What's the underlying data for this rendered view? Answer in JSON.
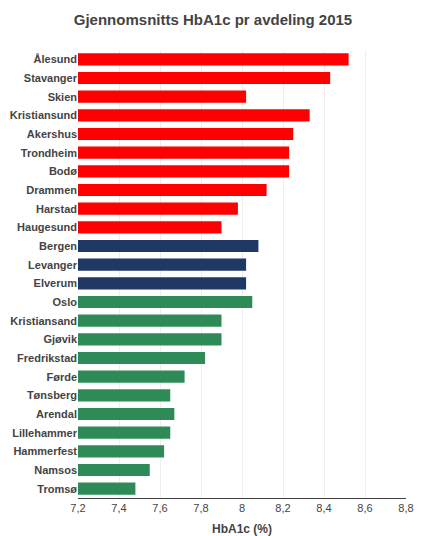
{
  "chart_data": {
    "type": "bar",
    "orientation": "horizontal",
    "title": "Gjennomsnitts HbA1c pr avdeling 2015",
    "xlabel": "HbA1c (%)",
    "categories": [
      "Ålesund",
      "Stavanger",
      "Skien",
      "Kristiansund",
      "Akershus",
      "Trondheim",
      "Bodø",
      "Drammen",
      "Harstad",
      "Haugesund",
      "Bergen",
      "Levanger",
      "Elverum",
      "Oslo",
      "Kristiansand",
      "Gjøvik",
      "Fredrikstad",
      "Førde",
      "Tønsberg",
      "Arendal",
      "Lillehammer",
      "Hammerfest",
      "Namsos",
      "Tromsø"
    ],
    "values": [
      8.52,
      8.43,
      8.02,
      8.33,
      8.25,
      8.23,
      8.23,
      8.12,
      7.98,
      7.9,
      8.08,
      8.02,
      8.02,
      8.05,
      7.9,
      7.9,
      7.82,
      7.72,
      7.65,
      7.67,
      7.65,
      7.62,
      7.55,
      7.48
    ],
    "colors": [
      "#ff0000",
      "#ff0000",
      "#ff0000",
      "#ff0000",
      "#ff0000",
      "#ff0000",
      "#ff0000",
      "#ff0000",
      "#ff0000",
      "#ff0000",
      "#1f3864",
      "#1f3864",
      "#1f3864",
      "#2e8b57",
      "#2e8b57",
      "#2e8b57",
      "#2e8b57",
      "#2e8b57",
      "#2e8b57",
      "#2e8b57",
      "#2e8b57",
      "#2e8b57",
      "#2e8b57",
      "#2e8b57"
    ],
    "xlim": [
      7.2,
      8.8
    ],
    "xticks": [
      {
        "value": 7.2,
        "label": "7,2"
      },
      {
        "value": 7.4,
        "label": "7,4"
      },
      {
        "value": 7.6,
        "label": "7,6"
      },
      {
        "value": 7.8,
        "label": "7,8"
      },
      8,
      {
        "value": 8.2,
        "label": "8,2"
      },
      {
        "value": 8.4,
        "label": "8,4"
      },
      {
        "value": 8.6,
        "label": "8,6"
      },
      {
        "value": 8.8,
        "label": "8,8"
      }
    ],
    "grid": true
  }
}
